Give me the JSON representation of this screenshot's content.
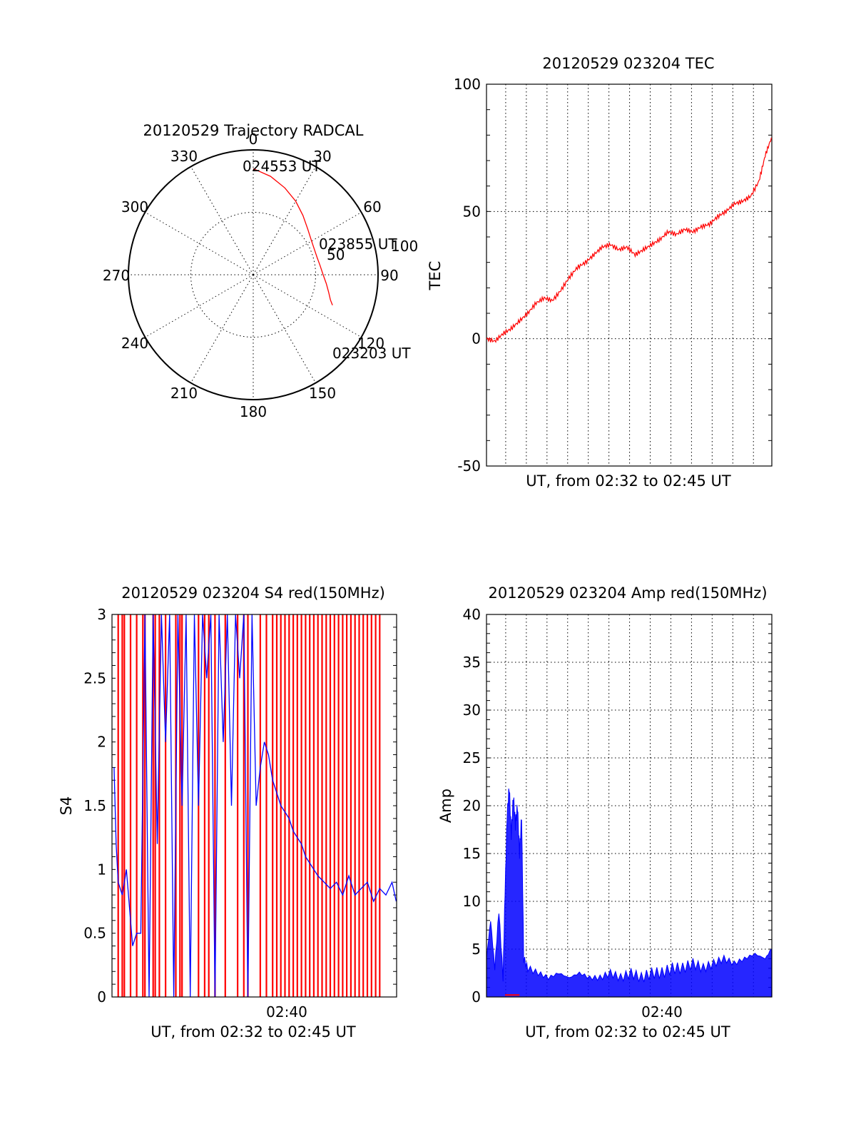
{
  "colors": {
    "red": "#ff0000",
    "blue": "#0000ff",
    "axis": "#000000"
  },
  "chart_data": [
    {
      "id": "trajectory",
      "type": "polar",
      "title": "20120529 Trajectory RADCAL",
      "angle_labels": [
        "0",
        "30",
        "60",
        "90",
        "120",
        "150",
        "180",
        "210",
        "240",
        "270",
        "300",
        "330"
      ],
      "radial_labels": [
        "50",
        "100"
      ],
      "radial_max": 100,
      "grid": true,
      "series": [
        {
          "color": "red",
          "points": [
            {
              "az": 0,
              "zen": 85
            },
            {
              "az": 10,
              "zen": 80
            },
            {
              "az": 20,
              "zen": 74
            },
            {
              "az": 30,
              "zen": 68
            },
            {
              "az": 40,
              "zen": 62
            },
            {
              "az": 50,
              "zen": 57
            },
            {
              "az": 60,
              "zen": 54
            },
            {
              "az": 68,
              "zen": 53
            },
            {
              "az": 75,
              "zen": 53
            },
            {
              "az": 82,
              "zen": 54
            },
            {
              "az": 90,
              "zen": 56
            },
            {
              "az": 97,
              "zen": 59
            },
            {
              "az": 103,
              "zen": 62
            },
            {
              "az": 108,
              "zen": 65
            },
            {
              "az": 111,
              "zen": 68
            }
          ]
        }
      ],
      "annotations": [
        {
          "text": "024553 UT",
          "az": 0,
          "zen": 85
        },
        {
          "text": "023855 UT",
          "az": 68,
          "zen": 53
        },
        {
          "text": "023203 UT",
          "az": 111,
          "zen": 68
        }
      ]
    },
    {
      "id": "tec",
      "type": "line",
      "title": "20120529 023204 TEC",
      "xlabel": "UT, from 02:32 to 02:45 UT",
      "ylabel": "TEC",
      "xlim": [
        "02:32:04",
        "02:45:53"
      ],
      "ylim": [
        -50,
        100
      ],
      "yticks": [
        -50,
        0,
        50,
        100
      ],
      "grid": true,
      "series": [
        {
          "color": "red",
          "x_minutes_after_0232": [
            0,
            0.4,
            0.8,
            1.2,
            1.6,
            2.0,
            2.4,
            2.8,
            3.2,
            3.6,
            4.0,
            4.4,
            4.8,
            5.2,
            5.6,
            6.0,
            6.4,
            6.8,
            7.2,
            7.6,
            8.0,
            8.4,
            8.8,
            9.2,
            9.6,
            10.0,
            10.4,
            10.8,
            11.2,
            11.6,
            12.0,
            12.4,
            12.8,
            13.2,
            13.5,
            13.8
          ],
          "values": [
            0,
            -1,
            2,
            4,
            7,
            10,
            14,
            16,
            15,
            19,
            24,
            28,
            30,
            33,
            36,
            37,
            35,
            36,
            33,
            35,
            37,
            39,
            42,
            41,
            43,
            42,
            44,
            45,
            48,
            50,
            53,
            54,
            56,
            62,
            72,
            79
          ]
        }
      ]
    },
    {
      "id": "s4",
      "type": "line",
      "title": "20120529 023204 S4 red(150MHz)",
      "xlabel": "UT, from 02:32 to 02:45 UT",
      "ylabel": "S4",
      "xticks": [
        "02:40"
      ],
      "xlim": [
        "02:32:04",
        "02:45:53"
      ],
      "ylim": [
        0,
        3
      ],
      "yticks": [
        "0",
        "0.5",
        "1",
        "1.5",
        "2",
        "2.5",
        "3"
      ],
      "grid": false,
      "series": [
        {
          "color": "red",
          "x_minutes_after_0232": [
            0.3,
            0.5,
            0.6,
            0.9,
            1.2,
            1.5,
            1.6,
            2.0,
            2.1,
            2.3,
            2.6,
            3.1,
            3.3,
            3.4,
            4.2,
            4.5,
            4.7,
            5.0,
            5.5,
            6.1,
            6.4,
            6.6,
            7.2,
            7.5,
            7.8,
            8.0,
            8.2,
            8.4,
            8.6,
            8.8,
            9.0,
            9.2,
            9.4,
            9.6,
            9.8,
            10.0,
            10.2,
            10.4,
            10.6,
            10.8,
            11.0,
            11.2,
            11.4,
            11.6,
            11.8,
            12.0,
            12.2,
            12.4,
            12.6,
            12.8,
            13.0
          ],
          "values": [
            3,
            0,
            3,
            0,
            3,
            0,
            3,
            0,
            3,
            0,
            3,
            0,
            3,
            0,
            3,
            0,
            3,
            0,
            3,
            0,
            3,
            0,
            3,
            0,
            3,
            0,
            3,
            0,
            3,
            0,
            3,
            0,
            3,
            0,
            3,
            0,
            3,
            0,
            3,
            0,
            3,
            0,
            3,
            0,
            3,
            0,
            3,
            0,
            3,
            0,
            3
          ]
        },
        {
          "color": "blue",
          "x_minutes_after_0232": [
            0.1,
            0.2,
            0.3,
            0.5,
            0.7,
            0.9,
            1.0,
            1.2,
            1.4,
            1.6,
            1.8,
            2.0,
            2.2,
            2.4,
            2.6,
            2.8,
            3.0,
            3.2,
            3.4,
            3.6,
            3.8,
            4.0,
            4.2,
            4.4,
            4.6,
            4.8,
            5.0,
            5.2,
            5.4,
            5.6,
            5.8,
            6.0,
            6.2,
            6.4,
            6.6,
            6.8,
            7.0,
            7.2,
            7.4,
            7.6,
            7.8,
            8.0,
            8.2,
            8.4,
            8.6,
            8.8,
            9.0,
            9.2,
            9.4,
            9.6,
            9.8,
            10.0,
            10.3,
            10.6,
            10.9,
            11.2,
            11.5,
            11.8,
            12.1,
            12.4,
            12.7,
            13.0,
            13.3,
            13.6,
            13.8
          ],
          "values": [
            1.8,
            1.2,
            0.9,
            0.8,
            1.0,
            0.6,
            0.4,
            0.5,
            0.5,
            3.0,
            0.0,
            3.0,
            1.2,
            3.0,
            2.0,
            3.0,
            0.0,
            3.0,
            1.5,
            3.0,
            0.0,
            3.0,
            1.5,
            3.0,
            2.5,
            3.0,
            0.0,
            3.0,
            2.0,
            3.0,
            1.5,
            3.0,
            2.5,
            3.0,
            0.0,
            3.0,
            1.5,
            1.8,
            2.0,
            1.9,
            1.7,
            1.6,
            1.5,
            1.45,
            1.4,
            1.3,
            1.25,
            1.2,
            1.1,
            1.05,
            1.0,
            0.95,
            0.9,
            0.85,
            0.9,
            0.8,
            0.95,
            0.8,
            0.85,
            0.9,
            0.75,
            0.85,
            0.8,
            0.9,
            0.75
          ]
        }
      ]
    },
    {
      "id": "amp",
      "type": "line",
      "title": "20120529 023204 Amp red(150MHz)",
      "xlabel": "UT, from 02:32 to 02:45 UT",
      "ylabel": "Amp",
      "xticks": [
        "02:40"
      ],
      "xlim": [
        "02:32:04",
        "02:45:53"
      ],
      "ylim": [
        0,
        40
      ],
      "yticks": [
        0,
        5,
        10,
        15,
        20,
        25,
        30,
        35,
        40
      ],
      "grid": true,
      "series": [
        {
          "color": "red",
          "x_minutes_after_0232": [
            0.9,
            1.6
          ],
          "values": [
            0.2,
            0.2
          ]
        },
        {
          "color": "blue",
          "x_minutes_after_0232": [
            0.0,
            0.2,
            0.4,
            0.6,
            0.8,
            0.9,
            1.0,
            1.1,
            1.2,
            1.3,
            1.4,
            1.5,
            1.6,
            1.7,
            1.8,
            2.0,
            2.5,
            3.0,
            3.5,
            4.0,
            4.5,
            5.0,
            5.5,
            6.0,
            6.5,
            7.0,
            7.5,
            8.0,
            8.5,
            9.0,
            9.5,
            10.0,
            10.5,
            11.0,
            11.5,
            12.0,
            12.5,
            13.0,
            13.5,
            13.8
          ],
          "values": [
            4,
            8,
            3,
            9,
            2,
            11,
            19,
            22,
            17,
            21,
            18,
            20,
            15,
            19,
            4,
            3,
            2.5,
            2,
            2.5,
            2,
            2.5,
            2,
            2,
            2.5,
            2,
            2.5,
            2,
            2.5,
            2.5,
            3,
            3,
            3.5,
            3,
            3.5,
            4,
            3.5,
            4,
            4.5,
            4,
            5
          ]
        }
      ]
    }
  ]
}
